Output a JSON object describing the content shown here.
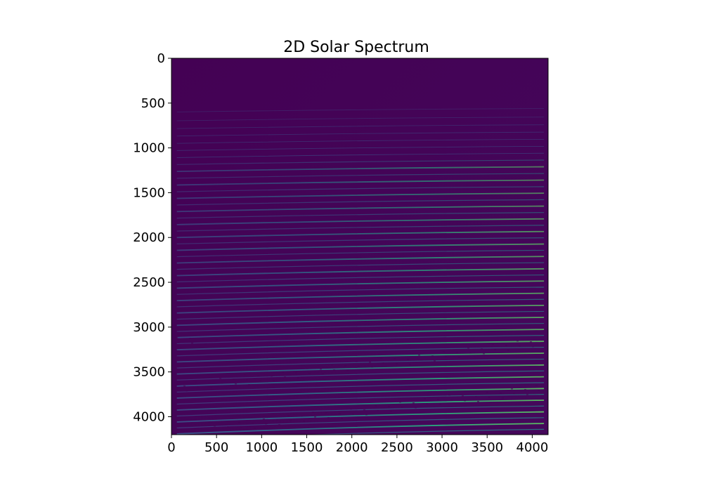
{
  "chart_data": {
    "type": "heatmap",
    "title": "2D Solar Spectrum",
    "xlabel": "",
    "ylabel": "",
    "xlim": [
      0,
      4176
    ],
    "ylim": [
      4200,
      0
    ],
    "x_ticks": [
      0,
      500,
      1000,
      1500,
      2000,
      2500,
      3000,
      3500,
      4000
    ],
    "y_ticks": [
      0,
      500,
      1000,
      1500,
      2000,
      2500,
      3000,
      3500,
      4000
    ],
    "grid": false,
    "colormap": "viridis",
    "colors": {
      "background": "#440154",
      "faint_order": "#3b528b",
      "mid_order": "#21918c",
      "bright_order": "#5ec962",
      "peak": "#d8e219"
    },
    "orders": {
      "first_row": 560,
      "last_row": 4140,
      "count": 52,
      "x_extent": [
        60,
        4130
      ]
    }
  }
}
